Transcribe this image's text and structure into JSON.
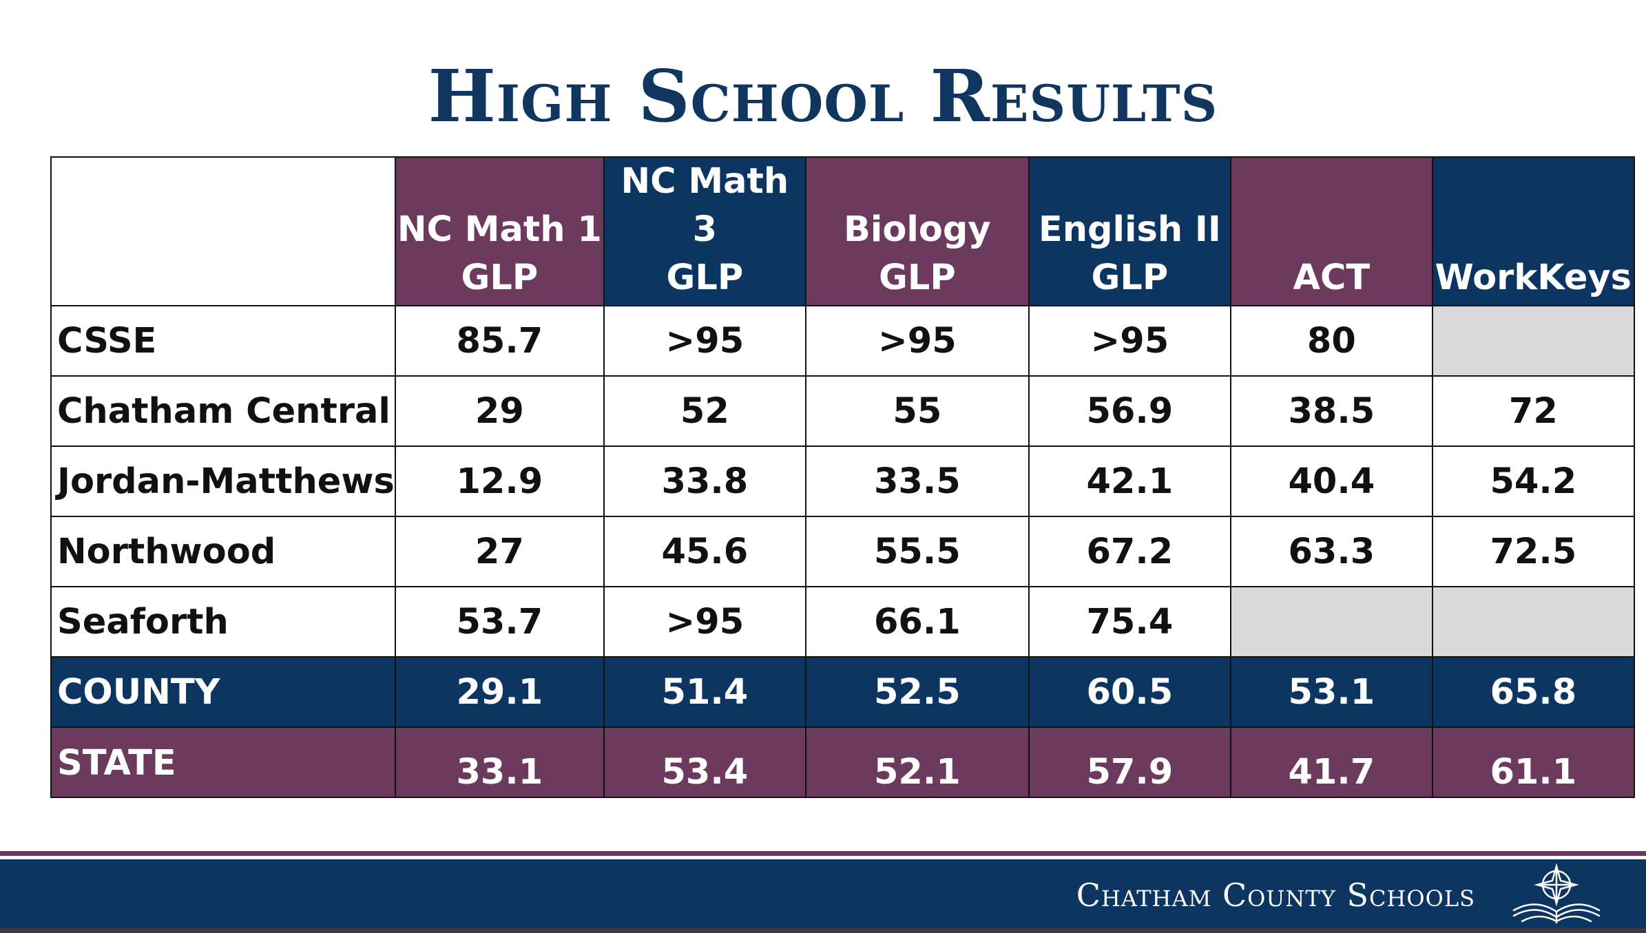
{
  "title": "High School Results",
  "table": {
    "headers": [
      {
        "line1": "NC Math 1",
        "line2": "GLP"
      },
      {
        "line1": "NC Math 3",
        "line2": "GLP"
      },
      {
        "line1": "Biology",
        "line2": "GLP"
      },
      {
        "line1": "English II",
        "line2": "GLP"
      },
      {
        "line1": "",
        "line2": "ACT"
      },
      {
        "line1": "",
        "line2": "WorkKeys"
      }
    ],
    "rows": [
      {
        "name": "CSSE",
        "values": [
          "85.7",
          ">95",
          ">95",
          ">95",
          "80",
          ""
        ]
      },
      {
        "name": "Chatham Central",
        "values": [
          "29",
          "52",
          "55",
          "56.9",
          "38.5",
          "72"
        ]
      },
      {
        "name": "Jordan-Matthews",
        "values": [
          "12.9",
          "33.8",
          "33.5",
          "42.1",
          "40.4",
          "54.2"
        ]
      },
      {
        "name": "Northwood",
        "values": [
          "27",
          "45.6",
          "55.5",
          "67.2",
          "63.3",
          "72.5"
        ]
      },
      {
        "name": "Seaforth",
        "values": [
          "53.7",
          ">95",
          "66.1",
          "75.4",
          "",
          ""
        ]
      }
    ],
    "county": {
      "name": "COUNTY",
      "values": [
        "29.1",
        "51.4",
        "52.5",
        "60.5",
        "53.1",
        "65.8"
      ]
    },
    "state": {
      "name": "STATE",
      "values": [
        "33.1",
        "53.4",
        "52.1",
        "57.9",
        "41.7",
        "61.1"
      ]
    }
  },
  "footer": {
    "org_name": "Chatham County Schools",
    "logo_icon": "compass-book-logo-icon"
  },
  "colors": {
    "navy": "#0c3562",
    "purple": "#6b3a5d",
    "empty_cell": "#d9d9d9"
  }
}
